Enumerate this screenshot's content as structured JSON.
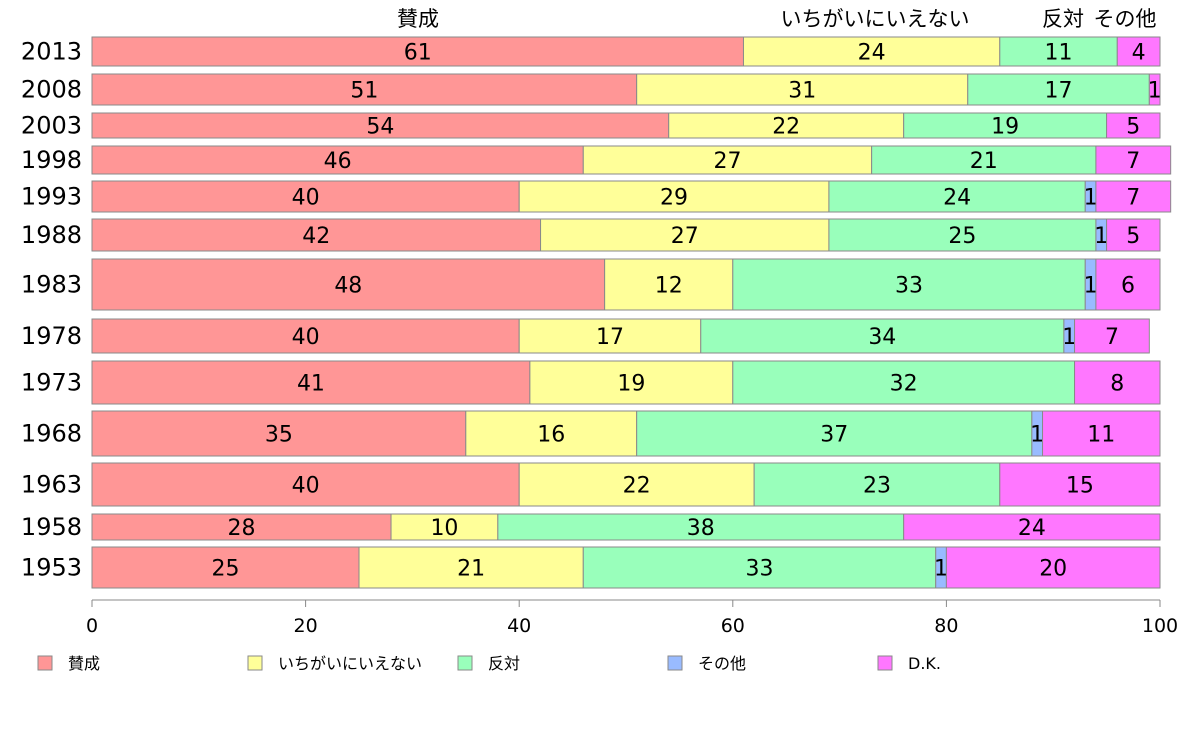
{
  "chart_data": {
    "type": "bar",
    "orientation": "horizontal-stacked-100",
    "column_headers": [
      "賛成",
      "いちがいにいえない",
      "反対",
      "その他"
    ],
    "categories": [
      "2013",
      "2008",
      "2003",
      "1998",
      "1993",
      "1988",
      "1983",
      "1978",
      "1973",
      "1968",
      "1963",
      "1958",
      "1953"
    ],
    "series": [
      {
        "name": "賛成",
        "color": "#ff9696",
        "values": [
          61,
          51,
          54,
          46,
          40,
          42,
          48,
          40,
          41,
          35,
          40,
          28,
          25
        ]
      },
      {
        "name": "いちがいにいえない",
        "color": "#ffff99",
        "values": [
          24,
          31,
          22,
          27,
          29,
          27,
          12,
          17,
          19,
          16,
          22,
          10,
          21
        ]
      },
      {
        "name": "反対",
        "color": "#99ffbb",
        "values": [
          11,
          17,
          19,
          21,
          24,
          25,
          33,
          34,
          32,
          37,
          23,
          38,
          33
        ]
      },
      {
        "name": "その他",
        "color": "#99bbff",
        "values": [
          0,
          0,
          0,
          0,
          1,
          1,
          1,
          1,
          0,
          1,
          0,
          0,
          1
        ]
      },
      {
        "name": "D.K.",
        "color": "#ff77ff",
        "values": [
          4,
          1,
          5,
          7,
          7,
          5,
          6,
          7,
          8,
          11,
          15,
          24,
          20
        ]
      }
    ],
    "xlim": [
      0,
      100
    ],
    "xticks": [
      "0",
      "20",
      "40",
      "60",
      "80",
      "100"
    ],
    "legend_position": "bottom"
  }
}
